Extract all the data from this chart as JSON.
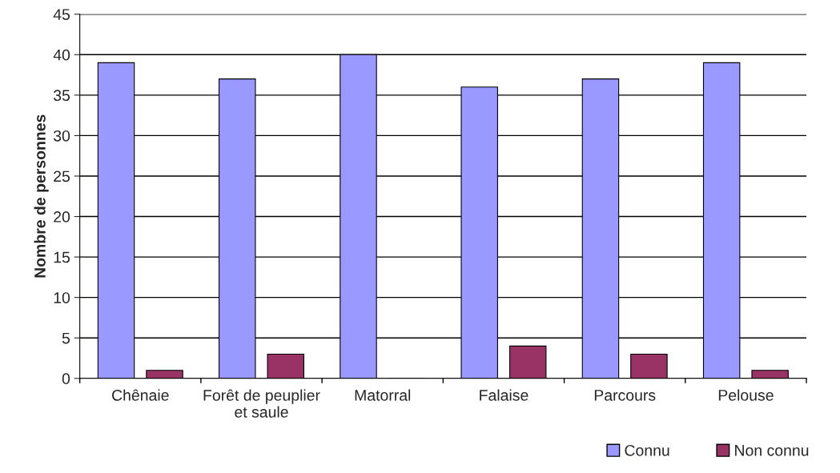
{
  "chart_data": {
    "type": "bar",
    "ylabel": "Nombre de personnes",
    "categories": [
      "Chênaie",
      "Forêt de peuplier et saule",
      "Matorral",
      "Falaise",
      "Parcours",
      "Pelouse"
    ],
    "series": [
      {
        "name": "Connu",
        "color": "#9999ff",
        "values": [
          39,
          37,
          40,
          36,
          37,
          39
        ]
      },
      {
        "name": "Non connu",
        "color": "#993366",
        "values": [
          1,
          3,
          0,
          4,
          3,
          1
        ]
      }
    ],
    "ylim": [
      0,
      45
    ],
    "yticks": [
      0,
      5,
      10,
      15,
      20,
      25,
      30,
      35,
      40,
      45
    ],
    "grid": "y",
    "legend": "bottom right"
  }
}
